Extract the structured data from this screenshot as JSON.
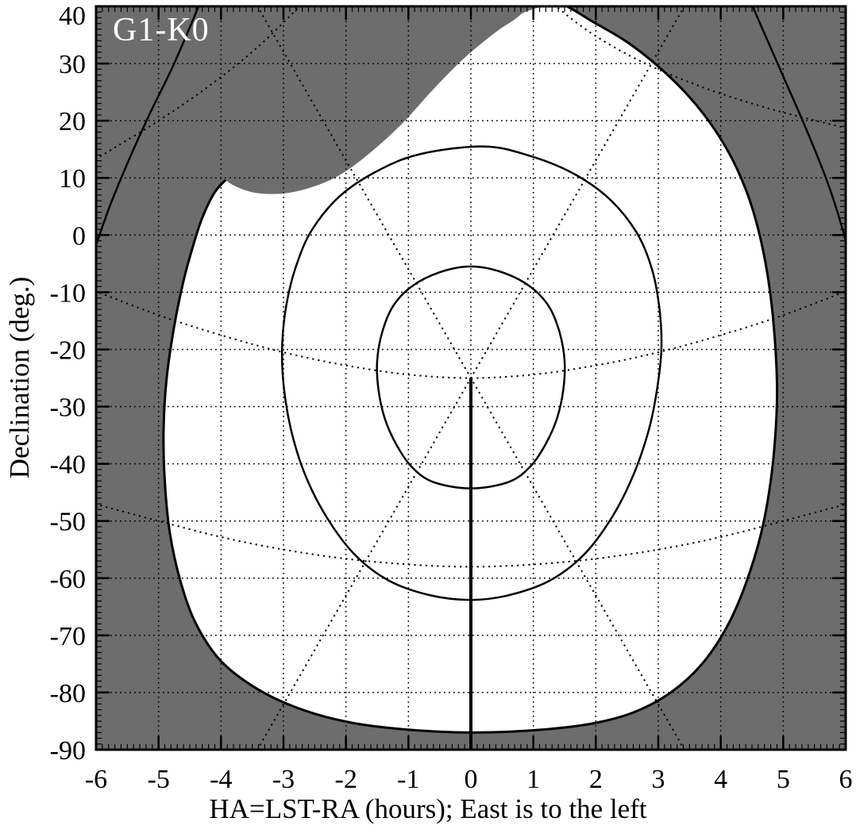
{
  "figure": {
    "corner_label": "G1-K0",
    "xlabel": "HA=LST-RA (hours); East is to the left",
    "ylabel": "Declination (deg.)"
  },
  "chart_data": {
    "type": "contour",
    "title": "G1-K0",
    "xlabel": "HA=LST-RA (hours); East is to the left",
    "ylabel": "Declination (deg.)",
    "xlim": [
      -6,
      6
    ],
    "ylim": [
      -90,
      40
    ],
    "x_ticks": [
      -6,
      -5,
      -4,
      -3,
      -2,
      -1,
      0,
      1,
      2,
      3,
      4,
      5,
      6
    ],
    "x_tick_labels": [
      "-6",
      "-5",
      "-4",
      "-3",
      "-2",
      "-1",
      "0",
      "1",
      "2",
      "3",
      "4",
      "5",
      "6"
    ],
    "y_ticks": [
      40,
      30,
      20,
      10,
      0,
      -10,
      -20,
      -30,
      -40,
      -50,
      -60,
      -70,
      -80,
      -90
    ],
    "y_tick_labels": [
      "40",
      "30",
      "20",
      "10",
      "0",
      "-10",
      "-20",
      "-30",
      "-40",
      "-50",
      "-60",
      "-70",
      "-80",
      "-90"
    ],
    "x_minor_step": 0.1,
    "y_minor_step": 1,
    "grid": "dotted grid lines at every labeled tick",
    "legend": "none",
    "shaded_region_meaning": "gray area = sky not observable with this baseline; white = observable",
    "colors": {
      "shade": "#6d6d6d",
      "line": "#000000",
      "region": "#ffffff",
      "corner_label": "#ffffff"
    },
    "accessible_region_outline": [
      [
        1.3,
        41
      ],
      [
        2.0,
        37
      ],
      [
        2.6,
        33
      ],
      [
        3.2,
        27.5
      ],
      [
        3.7,
        21.5
      ],
      [
        4.1,
        15
      ],
      [
        4.4,
        8
      ],
      [
        4.6,
        1
      ],
      [
        4.75,
        -7
      ],
      [
        4.85,
        -16
      ],
      [
        4.9,
        -26
      ],
      [
        4.88,
        -34
      ],
      [
        4.8,
        -43
      ],
      [
        4.65,
        -52
      ],
      [
        4.4,
        -61
      ],
      [
        4.1,
        -68.5
      ],
      [
        3.7,
        -75
      ],
      [
        3.2,
        -80
      ],
      [
        2.6,
        -83.5
      ],
      [
        1.9,
        -85.5
      ],
      [
        1.0,
        -86.6
      ],
      [
        0.0,
        -87
      ],
      [
        -1.0,
        -86.5
      ],
      [
        -1.9,
        -85.3
      ],
      [
        -2.7,
        -83
      ],
      [
        -3.4,
        -79.5
      ],
      [
        -4.0,
        -74.5
      ],
      [
        -4.4,
        -68
      ],
      [
        -4.65,
        -60.5
      ],
      [
        -4.82,
        -52
      ],
      [
        -4.9,
        -43
      ],
      [
        -4.92,
        -34
      ],
      [
        -4.87,
        -25
      ],
      [
        -4.75,
        -16
      ],
      [
        -4.6,
        -8
      ],
      [
        -4.45,
        -2
      ],
      [
        -4.3,
        3
      ],
      [
        -4.1,
        7.5
      ],
      [
        -3.85,
        10.5
      ],
      [
        -3.4,
        16
      ],
      [
        -2.8,
        23
      ],
      [
        -2.0,
        30
      ],
      [
        -1.2,
        35.5
      ],
      [
        -0.3,
        39
      ],
      [
        0.5,
        40.8
      ]
    ],
    "shade_notch_outline": [
      [
        -4.6,
        42
      ],
      [
        -4.35,
        26
      ],
      [
        -4.15,
        16
      ],
      [
        -4.0,
        10.5
      ],
      [
        -3.6,
        7.8
      ],
      [
        -3.1,
        7.2
      ],
      [
        -2.6,
        8.2
      ],
      [
        -2.1,
        10.5
      ],
      [
        -1.6,
        14.5
      ],
      [
        -1.1,
        19.5
      ],
      [
        -0.6,
        25.5
      ],
      [
        -0.1,
        31
      ],
      [
        0.4,
        35.5
      ],
      [
        0.8,
        38.6
      ],
      [
        1.0,
        42
      ]
    ],
    "contour_middle": [
      [
        0.2,
        15.5
      ],
      [
        0.9,
        14
      ],
      [
        1.6,
        11
      ],
      [
        2.2,
        6.5
      ],
      [
        2.65,
        0.5
      ],
      [
        2.9,
        -6
      ],
      [
        3.02,
        -13
      ],
      [
        3.05,
        -20
      ],
      [
        2.98,
        -27
      ],
      [
        2.85,
        -34
      ],
      [
        2.6,
        -42
      ],
      [
        2.25,
        -49.5
      ],
      [
        1.8,
        -56
      ],
      [
        1.25,
        -60.5
      ],
      [
        0.6,
        -63
      ],
      [
        0,
        -63.8
      ],
      [
        -0.65,
        -63
      ],
      [
        -1.3,
        -60.5
      ],
      [
        -1.85,
        -56
      ],
      [
        -2.3,
        -49.5
      ],
      [
        -2.65,
        -42
      ],
      [
        -2.88,
        -34
      ],
      [
        -3.0,
        -26
      ],
      [
        -3.02,
        -19
      ],
      [
        -2.95,
        -12
      ],
      [
        -2.8,
        -5.5
      ],
      [
        -2.55,
        0.8
      ],
      [
        -2.1,
        6.8
      ],
      [
        -1.5,
        11.2
      ],
      [
        -0.8,
        14.2
      ]
    ],
    "contour_inner": [
      [
        0,
        -5.5
      ],
      [
        0.5,
        -6.5
      ],
      [
        0.95,
        -9
      ],
      [
        1.25,
        -12.5
      ],
      [
        1.42,
        -17
      ],
      [
        1.5,
        -22
      ],
      [
        1.48,
        -27
      ],
      [
        1.38,
        -32
      ],
      [
        1.2,
        -36.5
      ],
      [
        0.95,
        -40.5
      ],
      [
        0.6,
        -43.2
      ],
      [
        0,
        -44.3
      ],
      [
        -0.6,
        -43.2
      ],
      [
        -0.95,
        -40.5
      ],
      [
        -1.2,
        -36.5
      ],
      [
        -1.38,
        -32
      ],
      [
        -1.48,
        -27
      ],
      [
        -1.5,
        -22
      ],
      [
        -1.42,
        -17
      ],
      [
        -1.25,
        -12.5
      ],
      [
        -0.95,
        -9
      ],
      [
        -0.5,
        -6.5
      ]
    ],
    "contour_outer_left_arc": [
      [
        -4.3,
        41.5
      ],
      [
        -4.75,
        30
      ],
      [
        -5.15,
        21
      ],
      [
        -5.5,
        12.5
      ],
      [
        -5.8,
        4.5
      ],
      [
        -6.1,
        -5
      ]
    ],
    "contour_outer_right_arc": [
      [
        4.45,
        41.5
      ],
      [
        4.95,
        29
      ],
      [
        5.35,
        19
      ],
      [
        5.7,
        9.5
      ],
      [
        5.95,
        1
      ],
      [
        6.15,
        -8
      ]
    ],
    "dotted_lines": [
      {
        "from": [
          -3.47,
          41
        ],
        "to": [
          3.47,
          -91
        ]
      },
      {
        "from": [
          3.47,
          41
        ],
        "to": [
          -3.47,
          -91
        ]
      }
    ],
    "dotted_curves": [
      [
        [
          -6.2,
          -9
        ],
        [
          -5,
          -14
        ],
        [
          -4,
          -17.5
        ],
        [
          -3,
          -20.5
        ],
        [
          -2,
          -22.8
        ],
        [
          -1,
          -24.4
        ],
        [
          0,
          -25
        ],
        [
          1,
          -24.4
        ],
        [
          2,
          -22.8
        ],
        [
          3,
          -20.5
        ],
        [
          4,
          -17.5
        ],
        [
          5,
          -14
        ],
        [
          6.2,
          -9
        ]
      ],
      [
        [
          -6.2,
          -46.5
        ],
        [
          -5,
          -50
        ],
        [
          -4,
          -52.8
        ],
        [
          -3,
          -55
        ],
        [
          -2,
          -56.6
        ],
        [
          -1,
          -57.6
        ],
        [
          0,
          -58
        ],
        [
          1,
          -57.6
        ],
        [
          2,
          -56.6
        ],
        [
          3,
          -55
        ],
        [
          4,
          -52.8
        ],
        [
          5,
          -50
        ],
        [
          6.2,
          -46.5
        ]
      ],
      [
        [
          1.25,
          41
        ],
        [
          1.9,
          35.5
        ],
        [
          2.7,
          30.5
        ],
        [
          3.6,
          26.3
        ],
        [
          4.5,
          23
        ],
        [
          5.3,
          20.6
        ],
        [
          6.2,
          18.2
        ]
      ],
      [
        [
          -2.65,
          41
        ],
        [
          -3.4,
          33
        ],
        [
          -4.2,
          26
        ],
        [
          -5.0,
          20
        ],
        [
          -5.7,
          15.3
        ],
        [
          -6.2,
          12
        ]
      ]
    ],
    "meridian_segment": {
      "x": 0,
      "dec_from": -25,
      "dec_to": -91
    },
    "crossing_point": {
      "ha": 0,
      "dec": -25
    }
  }
}
